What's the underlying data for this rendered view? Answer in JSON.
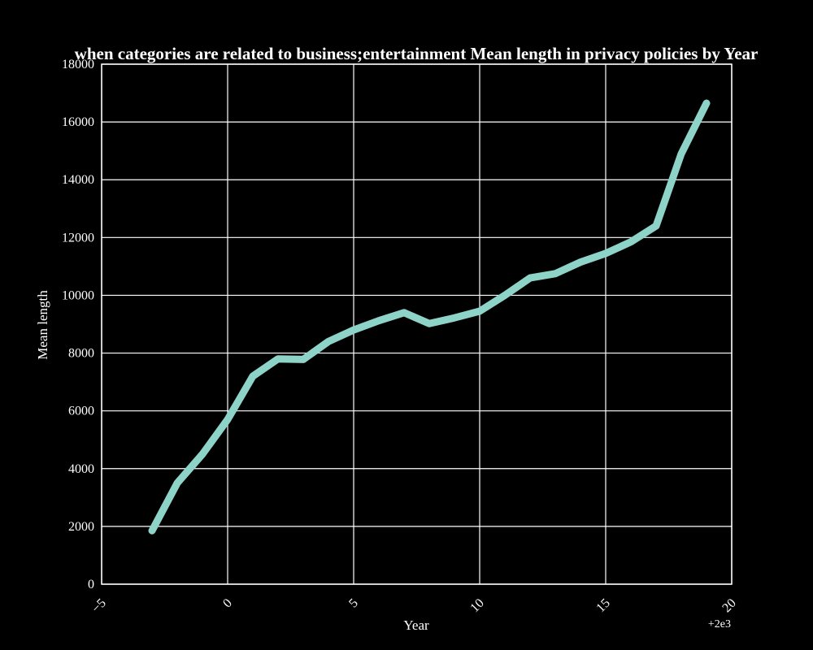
{
  "chart_data": {
    "type": "line",
    "title": "when categories are related to business;entertainment Mean length in privacy policies by Year",
    "xlabel": "Year",
    "ylabel": "Mean length",
    "x_offset_label": "+2e3",
    "xlim": [
      -5,
      20
    ],
    "ylim": [
      0,
      18000
    ],
    "x_ticks": [
      -5,
      0,
      5,
      10,
      15,
      20
    ],
    "x_tick_labels": [
      "−5",
      "0",
      "5",
      "10",
      "15",
      "20"
    ],
    "y_ticks": [
      0,
      2000,
      4000,
      6000,
      8000,
      10000,
      12000,
      14000,
      16000,
      18000
    ],
    "y_tick_labels": [
      "0",
      "2000",
      "4000",
      "6000",
      "8000",
      "10000",
      "12000",
      "14000",
      "16000",
      "18000"
    ],
    "grid": true,
    "background": "#000000",
    "series": [
      {
        "color": "#8dd3c7",
        "x": [
          -3,
          -2,
          -1,
          0,
          1,
          2,
          3,
          4,
          5,
          6,
          7,
          8,
          9,
          10,
          11,
          12,
          13,
          14,
          15,
          16,
          17,
          18,
          19
        ],
        "y": [
          1850,
          3500,
          4500,
          5700,
          7200,
          7800,
          7780,
          8400,
          8800,
          9120,
          9400,
          9020,
          9220,
          9450,
          10000,
          10600,
          10750,
          11150,
          11450,
          11850,
          12400,
          14900,
          16650
        ]
      }
    ]
  }
}
